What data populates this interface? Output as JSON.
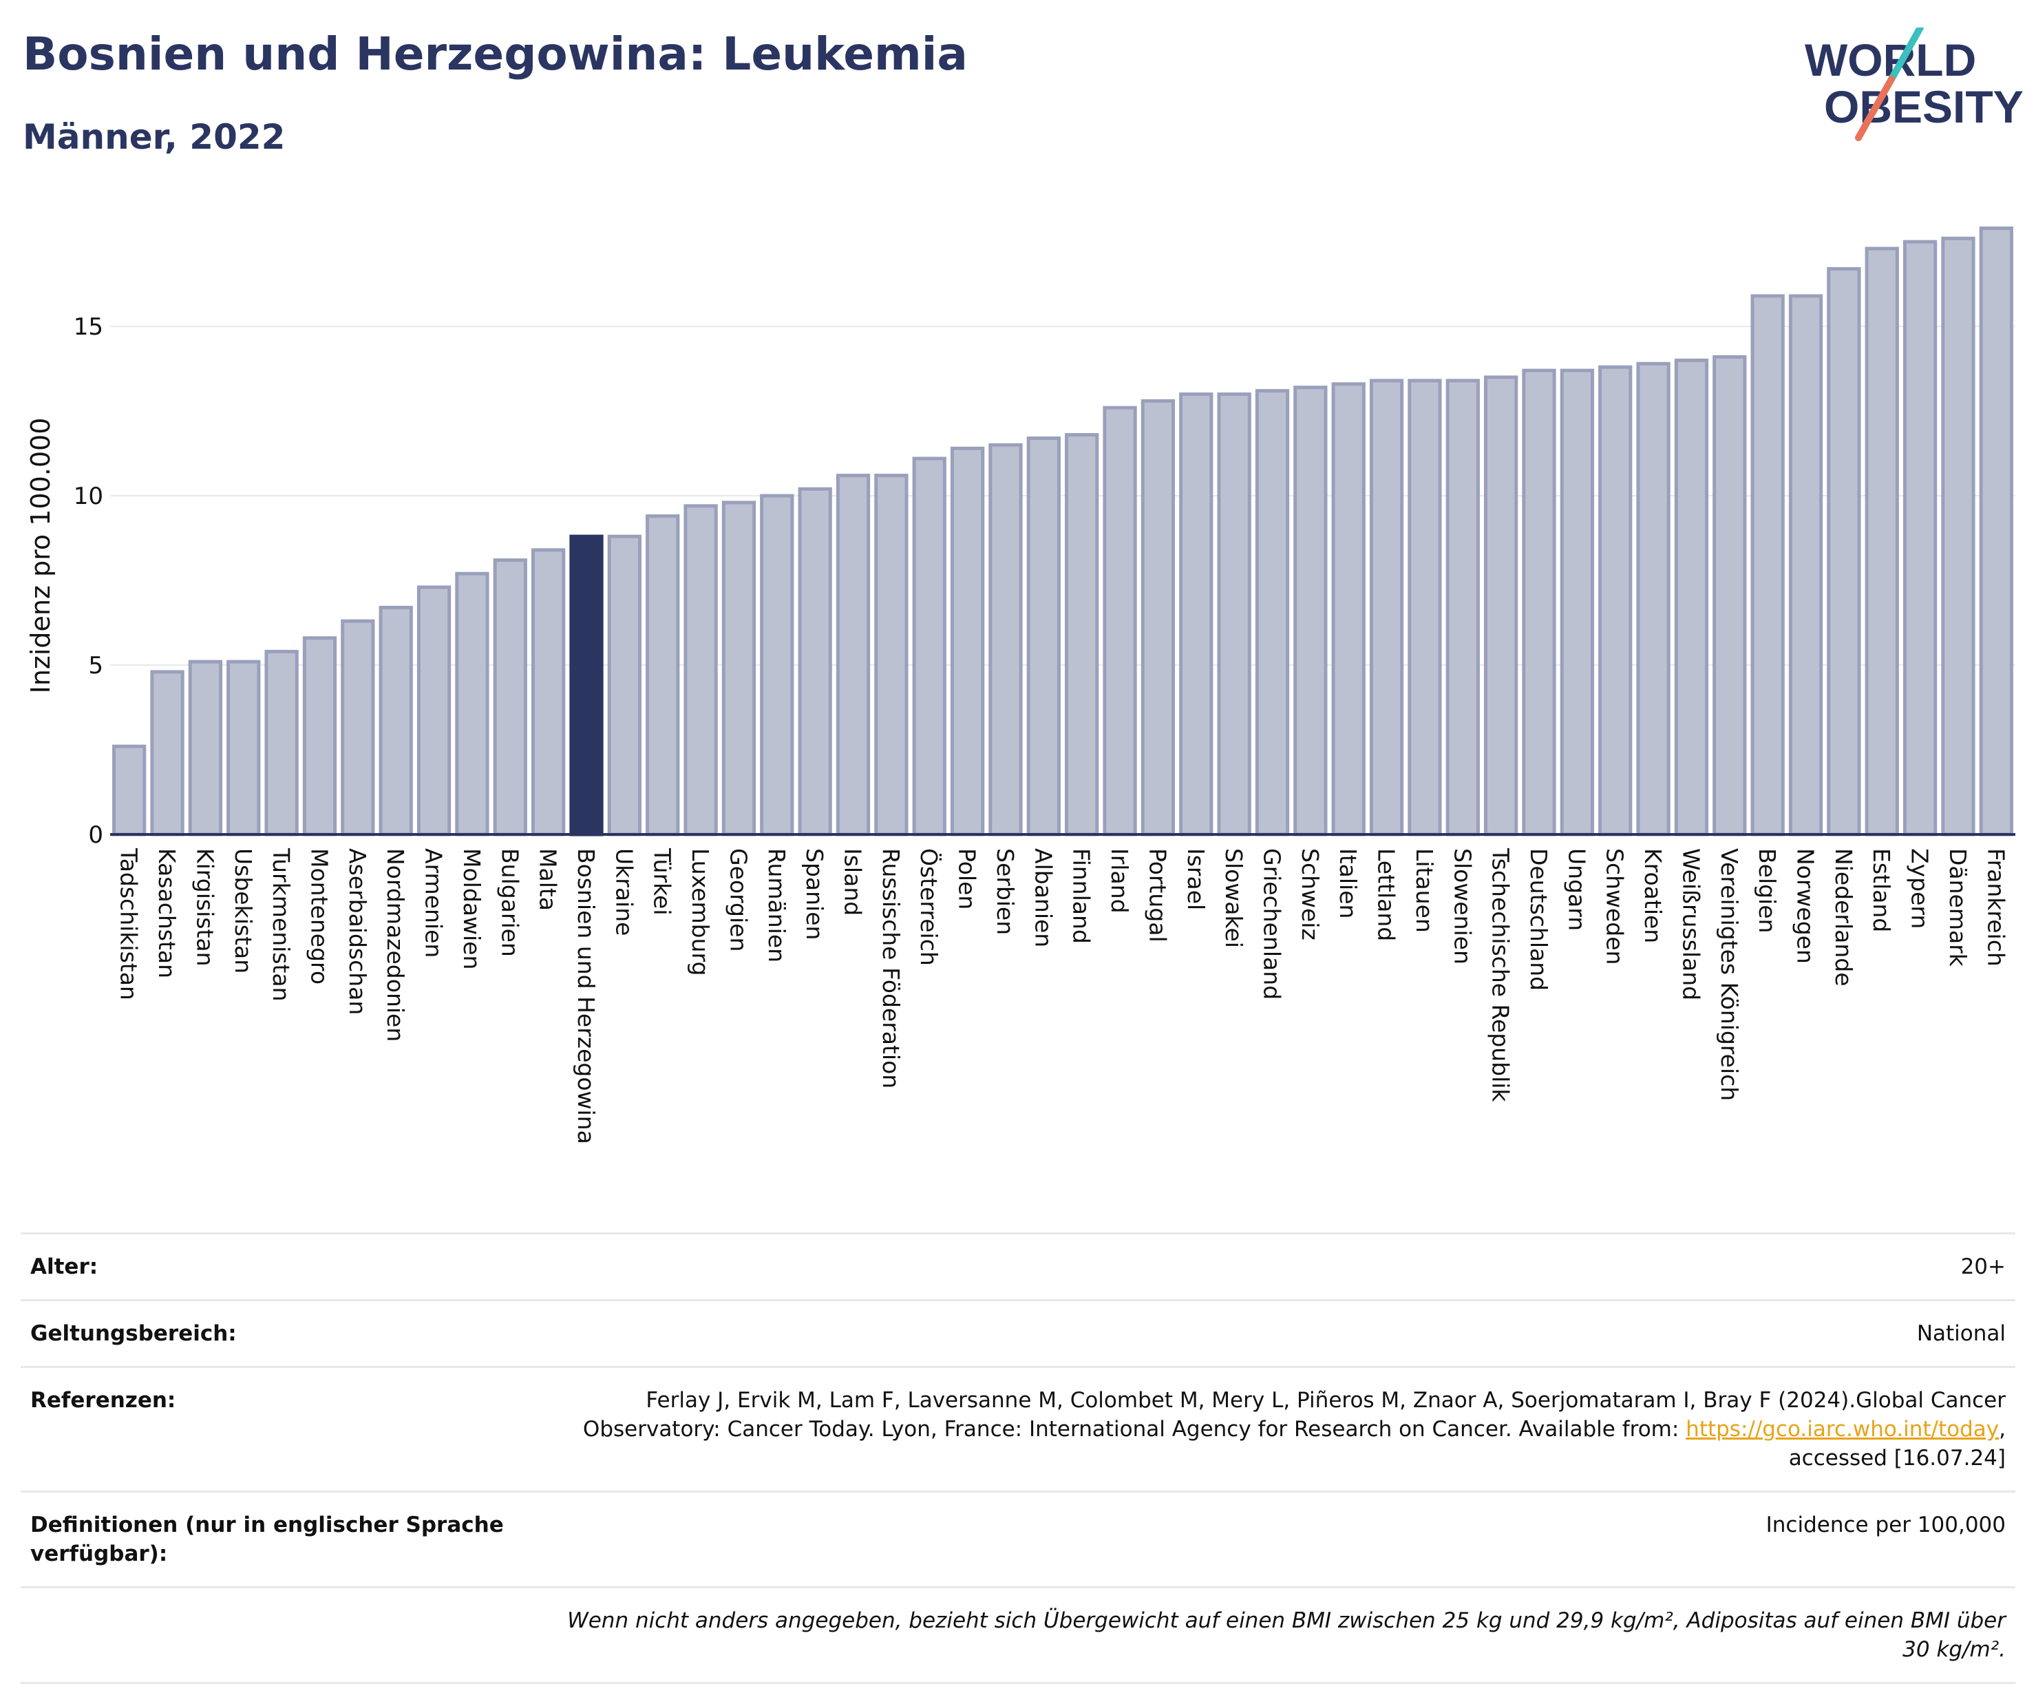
{
  "header": {
    "title": "Bosnien und Herzegowina: Leukemia",
    "subtitle": "Männer, 2022"
  },
  "logo": {
    "line1": "WORLD",
    "line2": "OBESITY"
  },
  "colors": {
    "highlight": "#2a3561",
    "bar": "#bcc1d1",
    "bar_border": "#9aa0bb",
    "text": "#2a3561"
  },
  "chart_data": {
    "type": "bar",
    "ylabel": "Inzidenz pro 100.000",
    "ylim": [
      0,
      18.5
    ],
    "yticks": [
      0,
      5,
      10,
      15
    ],
    "highlight": "Bosnien und Herzegowina",
    "categories": [
      "Tadschikistan",
      "Kasachstan",
      "Kirgisistan",
      "Usbekistan",
      "Turkmenistan",
      "Montenegro",
      "Aserbaidschan",
      "Nordmazedonien",
      "Armenien",
      "Moldawien",
      "Bulgarien",
      "Malta",
      "Bosnien und Herzegowina",
      "Ukraine",
      "Türkei",
      "Luxemburg",
      "Georgien",
      "Rumänien",
      "Spanien",
      "Island",
      "Russische Föderation",
      "Österreich",
      "Polen",
      "Serbien",
      "Albanien",
      "Finnland",
      "Irland",
      "Portugal",
      "Israel",
      "Slowakei",
      "Griechenland",
      "Schweiz",
      "Italien",
      "Lettland",
      "Litauen",
      "Slowenien",
      "Tschechische Republik",
      "Deutschland",
      "Ungarn",
      "Schweden",
      "Kroatien",
      "Weißrussland",
      "Vereinigtes Königreich",
      "Belgien",
      "Norwegen",
      "Niederlande",
      "Estland",
      "Zypern",
      "Dänemark",
      "Frankreich"
    ],
    "values": [
      2.6,
      4.8,
      5.1,
      5.1,
      5.4,
      5.8,
      6.3,
      6.7,
      7.3,
      7.7,
      8.1,
      8.4,
      8.8,
      8.8,
      9.4,
      9.7,
      9.8,
      10.0,
      10.2,
      10.6,
      10.6,
      11.1,
      11.4,
      11.5,
      11.7,
      11.8,
      12.6,
      12.8,
      13.0,
      13.0,
      13.1,
      13.2,
      13.3,
      13.4,
      13.4,
      13.4,
      13.5,
      13.7,
      13.7,
      13.8,
      13.9,
      14.0,
      14.1,
      15.9,
      15.9,
      16.7,
      17.3,
      17.5,
      17.6,
      17.9
    ]
  },
  "meta": {
    "age_label": "Alter:",
    "age_value": "20+",
    "scope_label": "Geltungsbereich:",
    "scope_value": "National",
    "ref_label": "Referenzen:",
    "ref_text_1": "Ferlay J, Ervik M, Lam F, Laversanne M, Colombet M, Mery L, Piñeros M, Znaor A, Soerjomataram I, Bray F (2024).Global Cancer Observatory: Cancer Today. Lyon, France: International Agency for Research on Cancer. Available from: ",
    "ref_link": "https://gco.iarc.who.int/today",
    "ref_text_2": ", accessed [16.07.24]",
    "def_label": "Definitionen (nur in englischer Sprache verfügbar):",
    "def_value": "Incidence per 100,000",
    "note": "Wenn nicht anders angegeben, bezieht sich Übergewicht auf einen BMI zwischen 25 kg und 29,9 kg/m², Adipositas auf einen BMI über 30 kg/m²."
  }
}
